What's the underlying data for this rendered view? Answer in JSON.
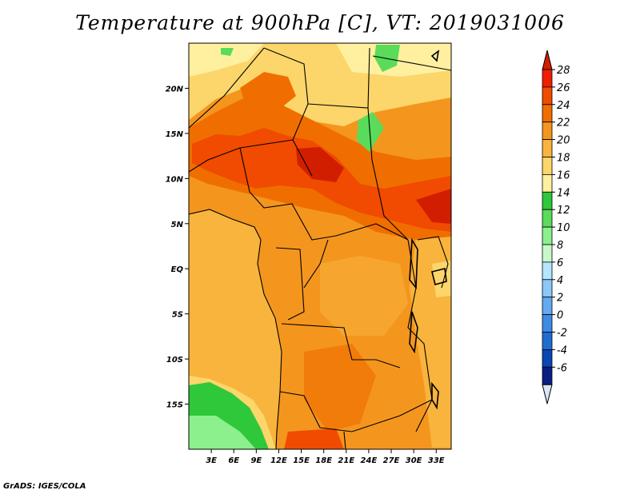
{
  "title": "Temperature at 900hPa [C], VT: 2019031006",
  "footer": "GrADS: IGES/COLA",
  "map": {
    "lon_min": 0,
    "lon_max": 35,
    "lat_min": -20,
    "lat_max": 25,
    "lat_labels": [
      {
        "lat": 20,
        "label": "20N"
      },
      {
        "lat": 15,
        "label": "15N"
      },
      {
        "lat": 10,
        "label": "10N"
      },
      {
        "lat": 5,
        "label": "5N"
      },
      {
        "lat": 0,
        "label": "EQ"
      },
      {
        "lat": -5,
        "label": "5S"
      },
      {
        "lat": -10,
        "label": "10S"
      },
      {
        "lat": -15,
        "label": "15S"
      }
    ],
    "lon_labels": [
      {
        "lon": 3,
        "label": "3E"
      },
      {
        "lon": 6,
        "label": "6E"
      },
      {
        "lon": 9,
        "label": "9E"
      },
      {
        "lon": 12,
        "label": "12E"
      },
      {
        "lon": 15,
        "label": "15E"
      },
      {
        "lon": 18,
        "label": "18E"
      },
      {
        "lon": 21,
        "label": "21E"
      },
      {
        "lon": 24,
        "label": "24E"
      },
      {
        "lon": 27,
        "label": "27E"
      },
      {
        "lon": 30,
        "label": "30E"
      },
      {
        "lon": 33,
        "label": "33E"
      }
    ]
  },
  "colorbar": {
    "levels": [
      "28",
      "26",
      "24",
      "22",
      "20",
      "18",
      "16",
      "14",
      "12",
      "10",
      "8",
      "6",
      "4",
      "2",
      "0",
      "-2",
      "-4",
      "-6"
    ],
    "colors": [
      "#f01e00",
      "#f04b00",
      "#f06e00",
      "#f4961e",
      "#f8b43c",
      "#fcd66a",
      "#fff0a0",
      "#2fc83a",
      "#5adc5a",
      "#8cf08c",
      "#c8f8c8",
      "#b4e6ff",
      "#8cc8f8",
      "#64aaf0",
      "#3c8ce6",
      "#1e6ed2",
      "#0a46b4",
      "#0a1e82"
    ],
    "top_color": "#d21e00",
    "bottom_color": "#dce6f8"
  }
}
